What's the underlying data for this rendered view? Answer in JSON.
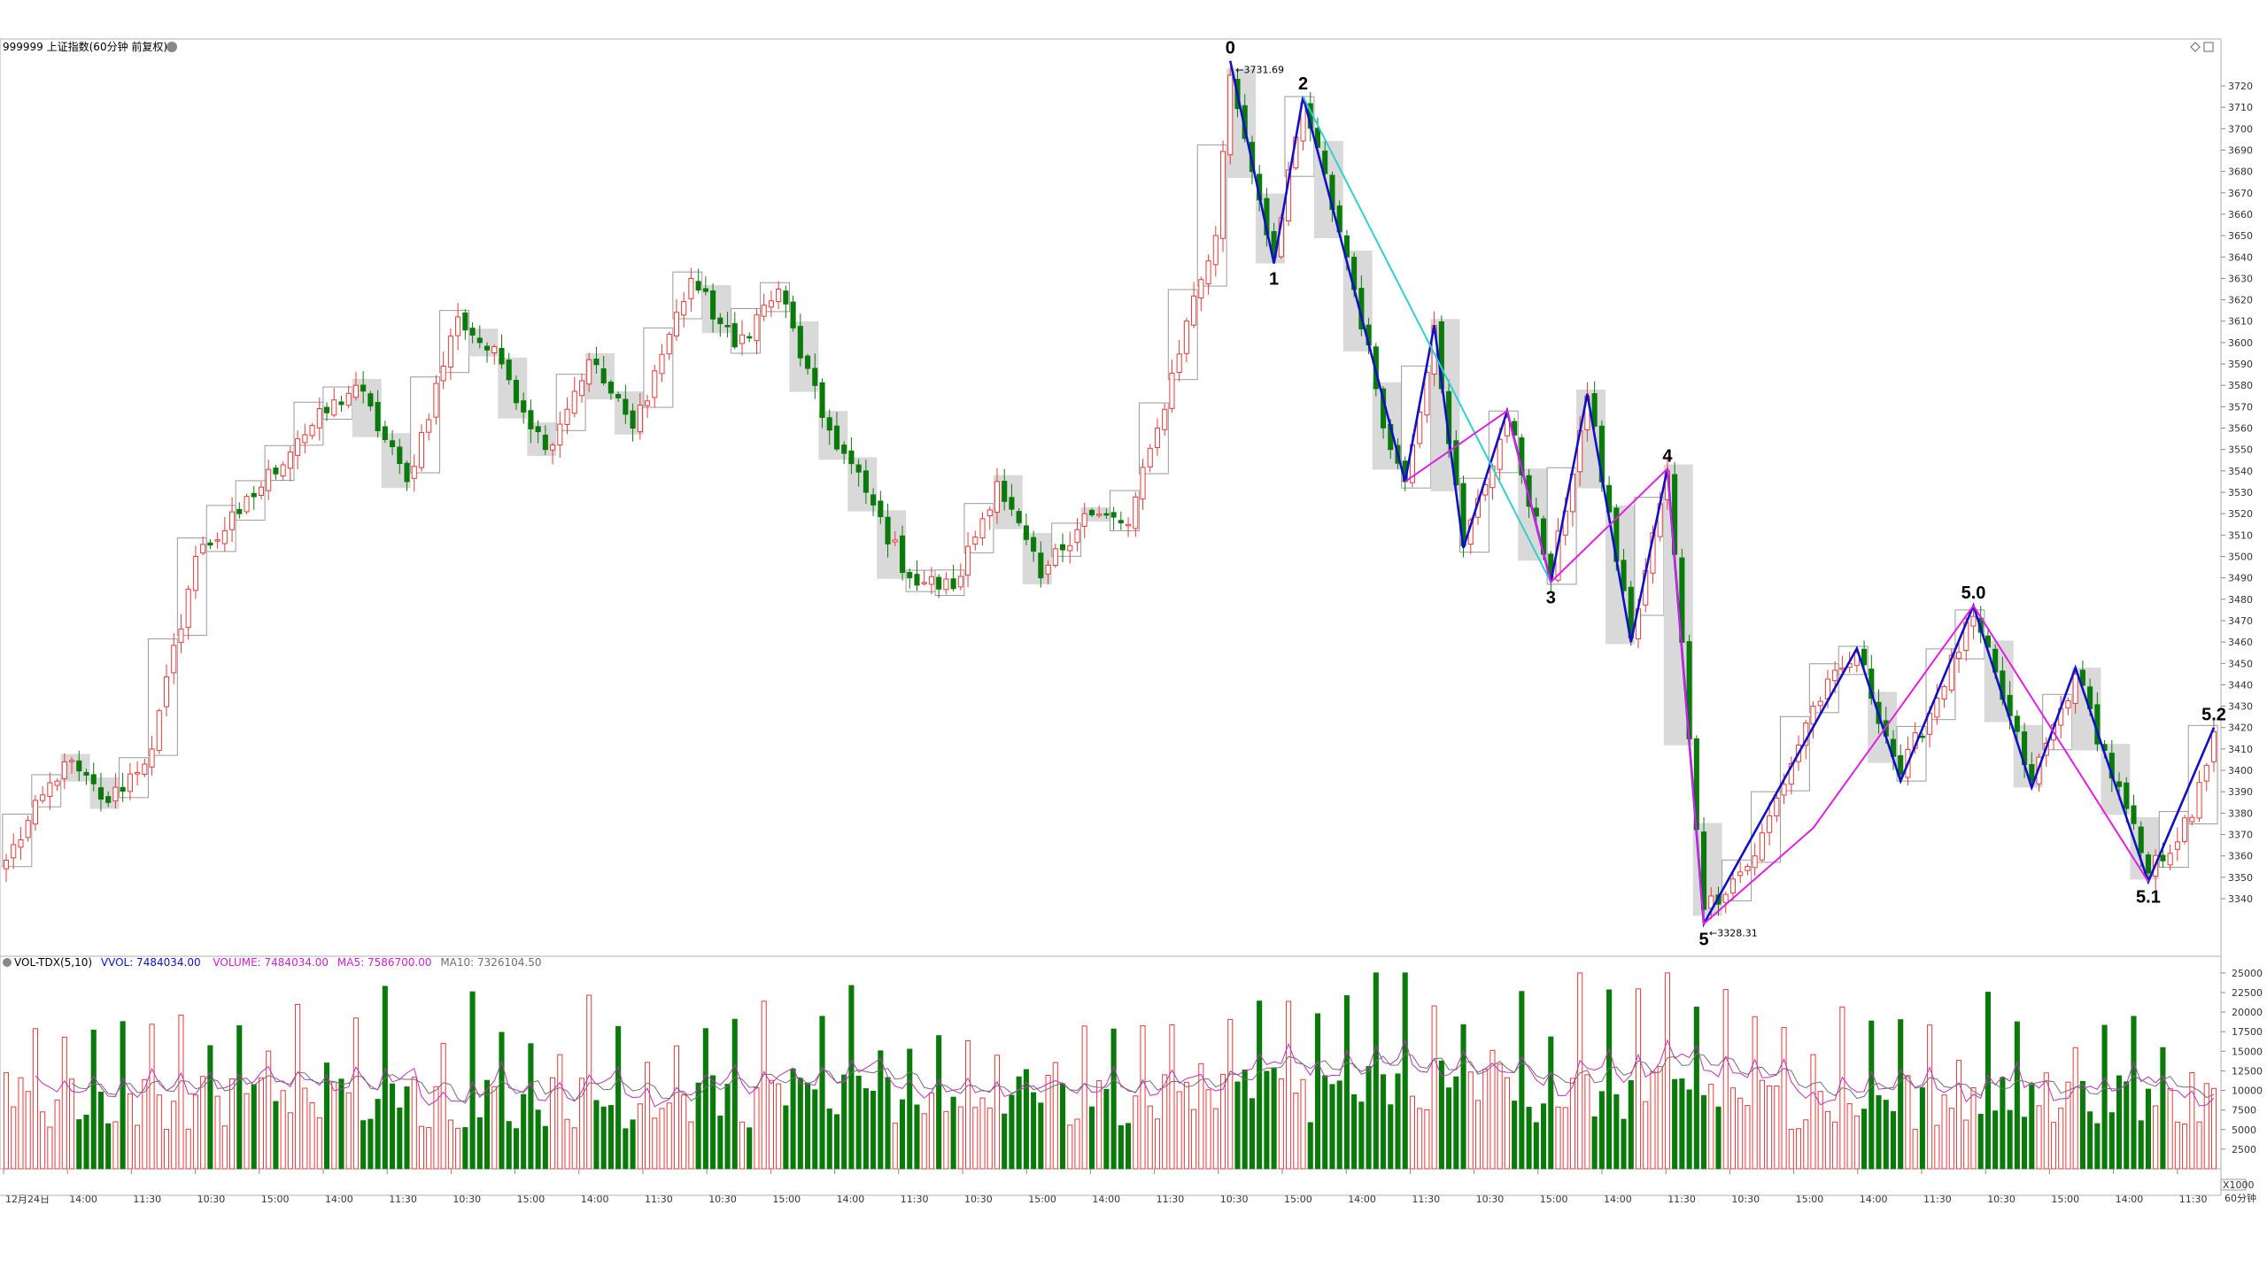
{
  "header": {
    "title": "999999 上证指数(60分钟 前复权)",
    "top_right_icons": [
      "diamond-icon",
      "window-icon",
      "close-icon"
    ]
  },
  "vol_header": {
    "prefix": "VOL-TDX(5,10)",
    "vvol": "VVOL: 7484034.00",
    "volume": "VOLUME: 7484034.00",
    "ma5": "MA5: 7586700.00",
    "ma10": "MA10: 7326104.50"
  },
  "timeframe_label": "60分钟",
  "x_multiplier": "X1000",
  "colors": {
    "up": "#e83a3a",
    "down": "#0a7a0a",
    "wave_main": "#1010c8",
    "wave_magenta": "#e020e0",
    "wave_cyan": "#30d0d0",
    "ma5": "#c030c0",
    "ma10": "#707070",
    "box_fill": "#d9d9d9"
  },
  "price_annotations": {
    "high": "3731.69",
    "low": "3328.31"
  },
  "wave_labels": [
    {
      "text": "0",
      "bar": 168,
      "price": 3731.69,
      "pos": "above"
    },
    {
      "text": "1",
      "bar": 174,
      "price": 3637,
      "pos": "below"
    },
    {
      "text": "2",
      "bar": 178,
      "price": 3715,
      "pos": "above"
    },
    {
      "text": "3",
      "bar": 212,
      "price": 3488,
      "pos": "below"
    },
    {
      "text": "4",
      "bar": 228,
      "price": 3541,
      "pos": "above"
    },
    {
      "text": "5",
      "bar": 233,
      "price": 3328.31,
      "pos": "below"
    },
    {
      "text": "5.0",
      "bar": 270,
      "price": 3477,
      "pos": "above"
    },
    {
      "text": "5.1",
      "bar": 294,
      "price": 3348,
      "pos": "below"
    },
    {
      "text": "5.2",
      "bar": 303,
      "price": 3420,
      "pos": "above"
    }
  ],
  "chart_data": [
    {
      "type": "candlestick",
      "title": "999999 上证指数(60分钟 前复权)",
      "ylim": [
        3328,
        3732
      ],
      "y_ticks": [
        3340,
        3350,
        3360,
        3370,
        3380,
        3390,
        3400,
        3410,
        3420,
        3430,
        3440,
        3450,
        3460,
        3470,
        3480,
        3490,
        3500,
        3510,
        3520,
        3530,
        3540,
        3550,
        3560,
        3570,
        3580,
        3590,
        3600,
        3610,
        3620,
        3630,
        3640,
        3650,
        3660,
        3670,
        3680,
        3690,
        3700,
        3710,
        3720
      ],
      "x_tick_labels": [
        "12月24日",
        "14:00",
        "11:30",
        "10:30",
        "15:00",
        "14:00",
        "11:30",
        "10:30",
        "15:00",
        "14:00",
        "11:30",
        "10:30",
        "15:00",
        "14:00",
        "11:30",
        "10:30",
        "15:00",
        "14:00",
        "11:30",
        "10:30",
        "15:00",
        "14:00",
        "11:30",
        "10:30",
        "15:00",
        "14:00",
        "11:30",
        "10:30",
        "15:00",
        "14:00",
        "11:30",
        "10:30",
        "15:00",
        "14:00",
        "11:30"
      ],
      "num_bars": 304,
      "anchors": [
        {
          "bar": 0,
          "price": 3358
        },
        {
          "bar": 8,
          "price": 3404
        },
        {
          "bar": 14,
          "price": 3385
        },
        {
          "bar": 20,
          "price": 3410
        },
        {
          "bar": 26,
          "price": 3500
        },
        {
          "bar": 32,
          "price": 3520
        },
        {
          "bar": 40,
          "price": 3555
        },
        {
          "bar": 48,
          "price": 3580
        },
        {
          "bar": 55,
          "price": 3535
        },
        {
          "bar": 62,
          "price": 3612
        },
        {
          "bar": 68,
          "price": 3590
        },
        {
          "bar": 74,
          "price": 3550
        },
        {
          "bar": 80,
          "price": 3592
        },
        {
          "bar": 86,
          "price": 3560
        },
        {
          "bar": 94,
          "price": 3630
        },
        {
          "bar": 100,
          "price": 3598
        },
        {
          "bar": 106,
          "price": 3625
        },
        {
          "bar": 112,
          "price": 3565
        },
        {
          "bar": 118,
          "price": 3530
        },
        {
          "bar": 124,
          "price": 3490
        },
        {
          "bar": 130,
          "price": 3485
        },
        {
          "bar": 136,
          "price": 3535
        },
        {
          "bar": 142,
          "price": 3490
        },
        {
          "bar": 148,
          "price": 3520
        },
        {
          "bar": 154,
          "price": 3515
        },
        {
          "bar": 158,
          "price": 3560
        },
        {
          "bar": 162,
          "price": 3610
        },
        {
          "bar": 166,
          "price": 3650
        },
        {
          "bar": 168,
          "price": 3725
        },
        {
          "bar": 174,
          "price": 3640
        },
        {
          "bar": 178,
          "price": 3712
        },
        {
          "bar": 184,
          "price": 3640
        },
        {
          "bar": 190,
          "price": 3550
        },
        {
          "bar": 192,
          "price": 3535
        },
        {
          "bar": 196,
          "price": 3608
        },
        {
          "bar": 200,
          "price": 3505
        },
        {
          "bar": 206,
          "price": 3565
        },
        {
          "bar": 212,
          "price": 3490
        },
        {
          "bar": 217,
          "price": 3575
        },
        {
          "bar": 223,
          "price": 3462
        },
        {
          "bar": 228,
          "price": 3540
        },
        {
          "bar": 233,
          "price": 3335
        },
        {
          "bar": 240,
          "price": 3360
        },
        {
          "bar": 248,
          "price": 3430
        },
        {
          "bar": 254,
          "price": 3455
        },
        {
          "bar": 260,
          "price": 3398
        },
        {
          "bar": 270,
          "price": 3472
        },
        {
          "bar": 278,
          "price": 3395
        },
        {
          "bar": 284,
          "price": 3445
        },
        {
          "bar": 294,
          "price": 3352
        },
        {
          "bar": 300,
          "price": 3378
        },
        {
          "bar": 303,
          "price": 3418
        }
      ],
      "wave_lines": [
        {
          "color": "blue",
          "points": [
            [
              168,
              3731.69
            ],
            [
              174,
              3637
            ],
            [
              178,
              3715
            ],
            [
              192,
              3535
            ],
            [
              196,
              3608
            ],
            [
              200,
              3504
            ],
            [
              206,
              3568
            ],
            [
              212,
              3488
            ],
            [
              217,
              3576
            ],
            [
              223,
              3460
            ],
            [
              228,
              3541
            ],
            [
              233,
              3328.31
            ],
            [
              254,
              3457
            ],
            [
              260,
              3395
            ],
            [
              270,
              3477
            ],
            [
              278,
              3392
            ],
            [
              284,
              3448
            ],
            [
              294,
              3348
            ],
            [
              303,
              3420
            ]
          ]
        },
        {
          "color": "cyan",
          "points": [
            [
              178,
              3715
            ],
            [
              212,
              3488
            ]
          ]
        },
        {
          "color": "magenta",
          "points": [
            [
              192,
              3535
            ],
            [
              206,
              3568
            ],
            [
              212,
              3488
            ],
            [
              228,
              3541
            ],
            [
              233,
              3328.31
            ],
            [
              248,
              3373
            ],
            [
              270,
              3477
            ],
            [
              294,
              3348
            ]
          ]
        }
      ]
    },
    {
      "type": "bar",
      "title": "VOL-TDX(5,10)",
      "ylim": [
        0,
        26000
      ],
      "y_ticks": [
        2500,
        5000,
        7500,
        10000,
        12500,
        15000,
        17500,
        20000,
        22500,
        25000
      ],
      "series": [
        {
          "name": "VOLUME",
          "last": 7484034.0
        },
        {
          "name": "MA5",
          "last": 7586700.0
        },
        {
          "name": "MA10",
          "last": 7326104.5
        }
      ]
    }
  ]
}
